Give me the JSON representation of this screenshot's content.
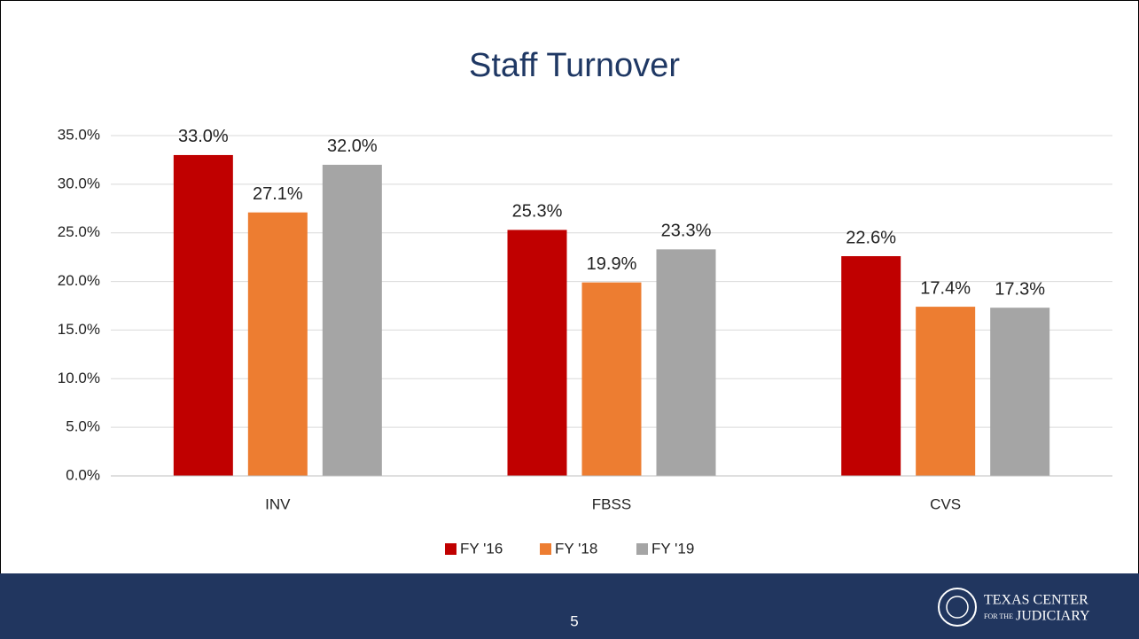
{
  "chart_data": {
    "type": "bar",
    "title": "Staff Turnover",
    "categories": [
      "INV",
      "FBSS",
      "CVS"
    ],
    "series": [
      {
        "name": "FY '16",
        "color": "#c00000",
        "values": [
          33,
          25.3,
          22.6
        ],
        "value_labels": [
          "33.0%",
          "25.3%",
          "22.6%"
        ]
      },
      {
        "name": "FY '18",
        "color": "#ed7d31",
        "values": [
          27.1,
          19.9,
          17.4
        ],
        "value_labels": [
          "27.1%",
          "19.9%",
          "17.4%"
        ]
      },
      {
        "name": "FY '19",
        "color": "#a5a5a5",
        "values": [
          32,
          23.3,
          17.3
        ],
        "value_labels": [
          "32.0%",
          "23.3%",
          "17.3%"
        ]
      }
    ],
    "ylim": [
      0,
      35
    ],
    "yticks": [
      {
        "value": 0,
        "label": "0.0%"
      },
      {
        "value": 5,
        "label": "5.0%"
      },
      {
        "value": 10,
        "label": "10.0%"
      },
      {
        "value": 15,
        "label": "15.0%"
      },
      {
        "value": 20,
        "label": "20.0%"
      },
      {
        "value": 25,
        "label": "25.0%"
      },
      {
        "value": 30,
        "label": "30.0%"
      },
      {
        "value": 35,
        "label": "35.0%"
      }
    ],
    "grid": true,
    "legend": "bottom"
  },
  "footer": {
    "page": "5",
    "logo": {
      "line1": "TEXAS CENTER",
      "line2a": "FOR THE",
      "line2b": "JUDICIARY"
    }
  }
}
